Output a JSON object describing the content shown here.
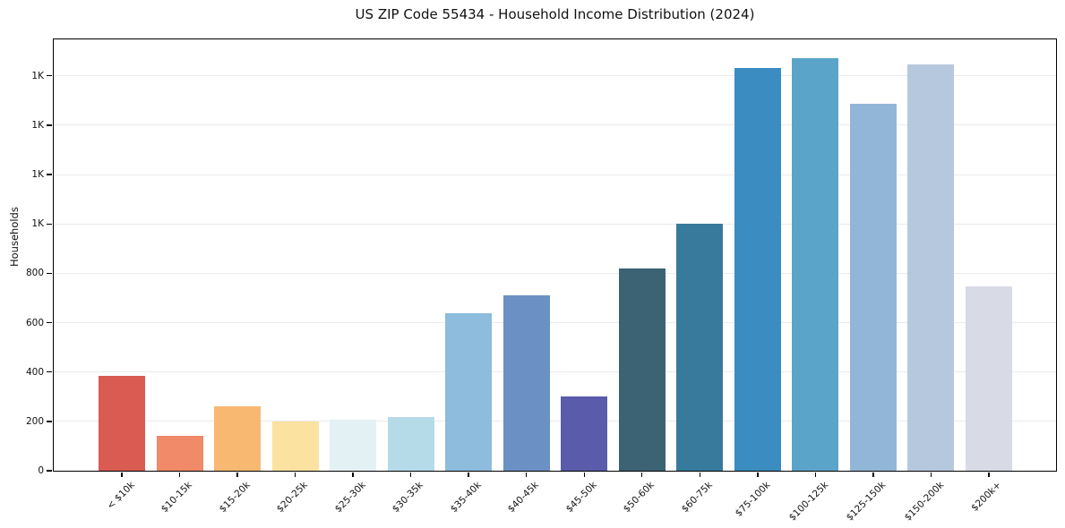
{
  "figure": {
    "title": "US ZIP Code 55434 - Household Income Distribution (2024)"
  },
  "chart_data": {
    "type": "bar",
    "title": "US ZIP Code 55434 - Household Income Distribution (2024)",
    "xlabel": "",
    "ylabel": "Households",
    "categories": [
      "< $10k",
      "$10-15k",
      "$15-20k",
      "$20-25k",
      "$25-30k",
      "$30-35k",
      "$35-40k",
      "$40-45k",
      "$45-50k",
      "$50-60k",
      "$60-75k",
      "$75-100k",
      "$100-125k",
      "$125-150k",
      "$150-200k",
      "$200k+"
    ],
    "values": [
      385,
      140,
      262,
      200,
      206,
      216,
      640,
      710,
      300,
      820,
      1002,
      1630,
      1670,
      1487,
      1648,
      748
    ],
    "bar_colors": [
      "#d95b52",
      "#f08a68",
      "#f9b872",
      "#fce2a0",
      "#e3f0f4",
      "#b5dbe9",
      "#8dbcdc",
      "#6b90c4",
      "#5a5cab",
      "#3b6374",
      "#387a9b",
      "#3a8cc1",
      "#5ba4c9",
      "#92b6d7",
      "#b6c8de",
      "#d8dae6"
    ],
    "ylim": [
      0,
      1755
    ],
    "yticks": [
      {
        "value": 0,
        "label": "0"
      },
      {
        "value": 200,
        "label": "200"
      },
      {
        "value": 400,
        "label": "400"
      },
      {
        "value": 600,
        "label": "600"
      },
      {
        "value": 800,
        "label": "800"
      },
      {
        "value": 1000,
        "label": "1K"
      },
      {
        "value": 1200,
        "label": "1K"
      },
      {
        "value": 1400,
        "label": "1K"
      },
      {
        "value": 1600,
        "label": "1K"
      }
    ],
    "grid": {
      "axis": "y",
      "color": "#ebebeb"
    },
    "legend": null,
    "axis_color": "#000000",
    "background_color": "#ffffff"
  }
}
